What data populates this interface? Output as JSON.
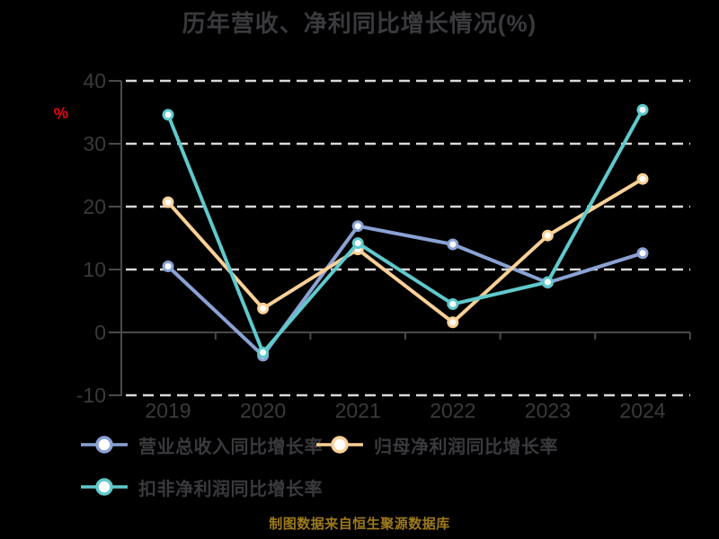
{
  "chart_data": {
    "type": "line",
    "title": "历年营收、净利同比增长情况(%)",
    "ylabel": "%",
    "categories": [
      "2019",
      "2020",
      "2021",
      "2022",
      "2023",
      "2024"
    ],
    "series": [
      {
        "name": "营业总收入同比增长率",
        "color": "#8aa2d3",
        "values": [
          10.5,
          -3.7,
          16.9,
          14.0,
          7.9,
          12.6
        ]
      },
      {
        "name": "归母净利润同比增长率",
        "color": "#fad096",
        "values": [
          20.7,
          3.8,
          13.2,
          1.6,
          15.4,
          24.4
        ]
      },
      {
        "name": "扣非净利润同比增长率",
        "color": "#5fc9cc",
        "values": [
          34.6,
          -3.2,
          14.2,
          4.5,
          8.0,
          35.4
        ]
      }
    ],
    "ylim": [
      -10,
      40
    ],
    "yticks": [
      40,
      30,
      20,
      10,
      0,
      -10
    ],
    "grid": "horizontal dashed, zero line solid",
    "legend_position": "bottom-left, two rows"
  },
  "footer": {
    "text": "制图数据来自恒生聚源数据库"
  },
  "colors": {
    "background": "#000000",
    "grid": "#d9d9d9",
    "axis": "#4a4a4a",
    "text": "#3a3a3e",
    "ylabel_red": "#e60012",
    "footer_gold": "#9d7a1b",
    "marker_fill": "#ffffff"
  }
}
